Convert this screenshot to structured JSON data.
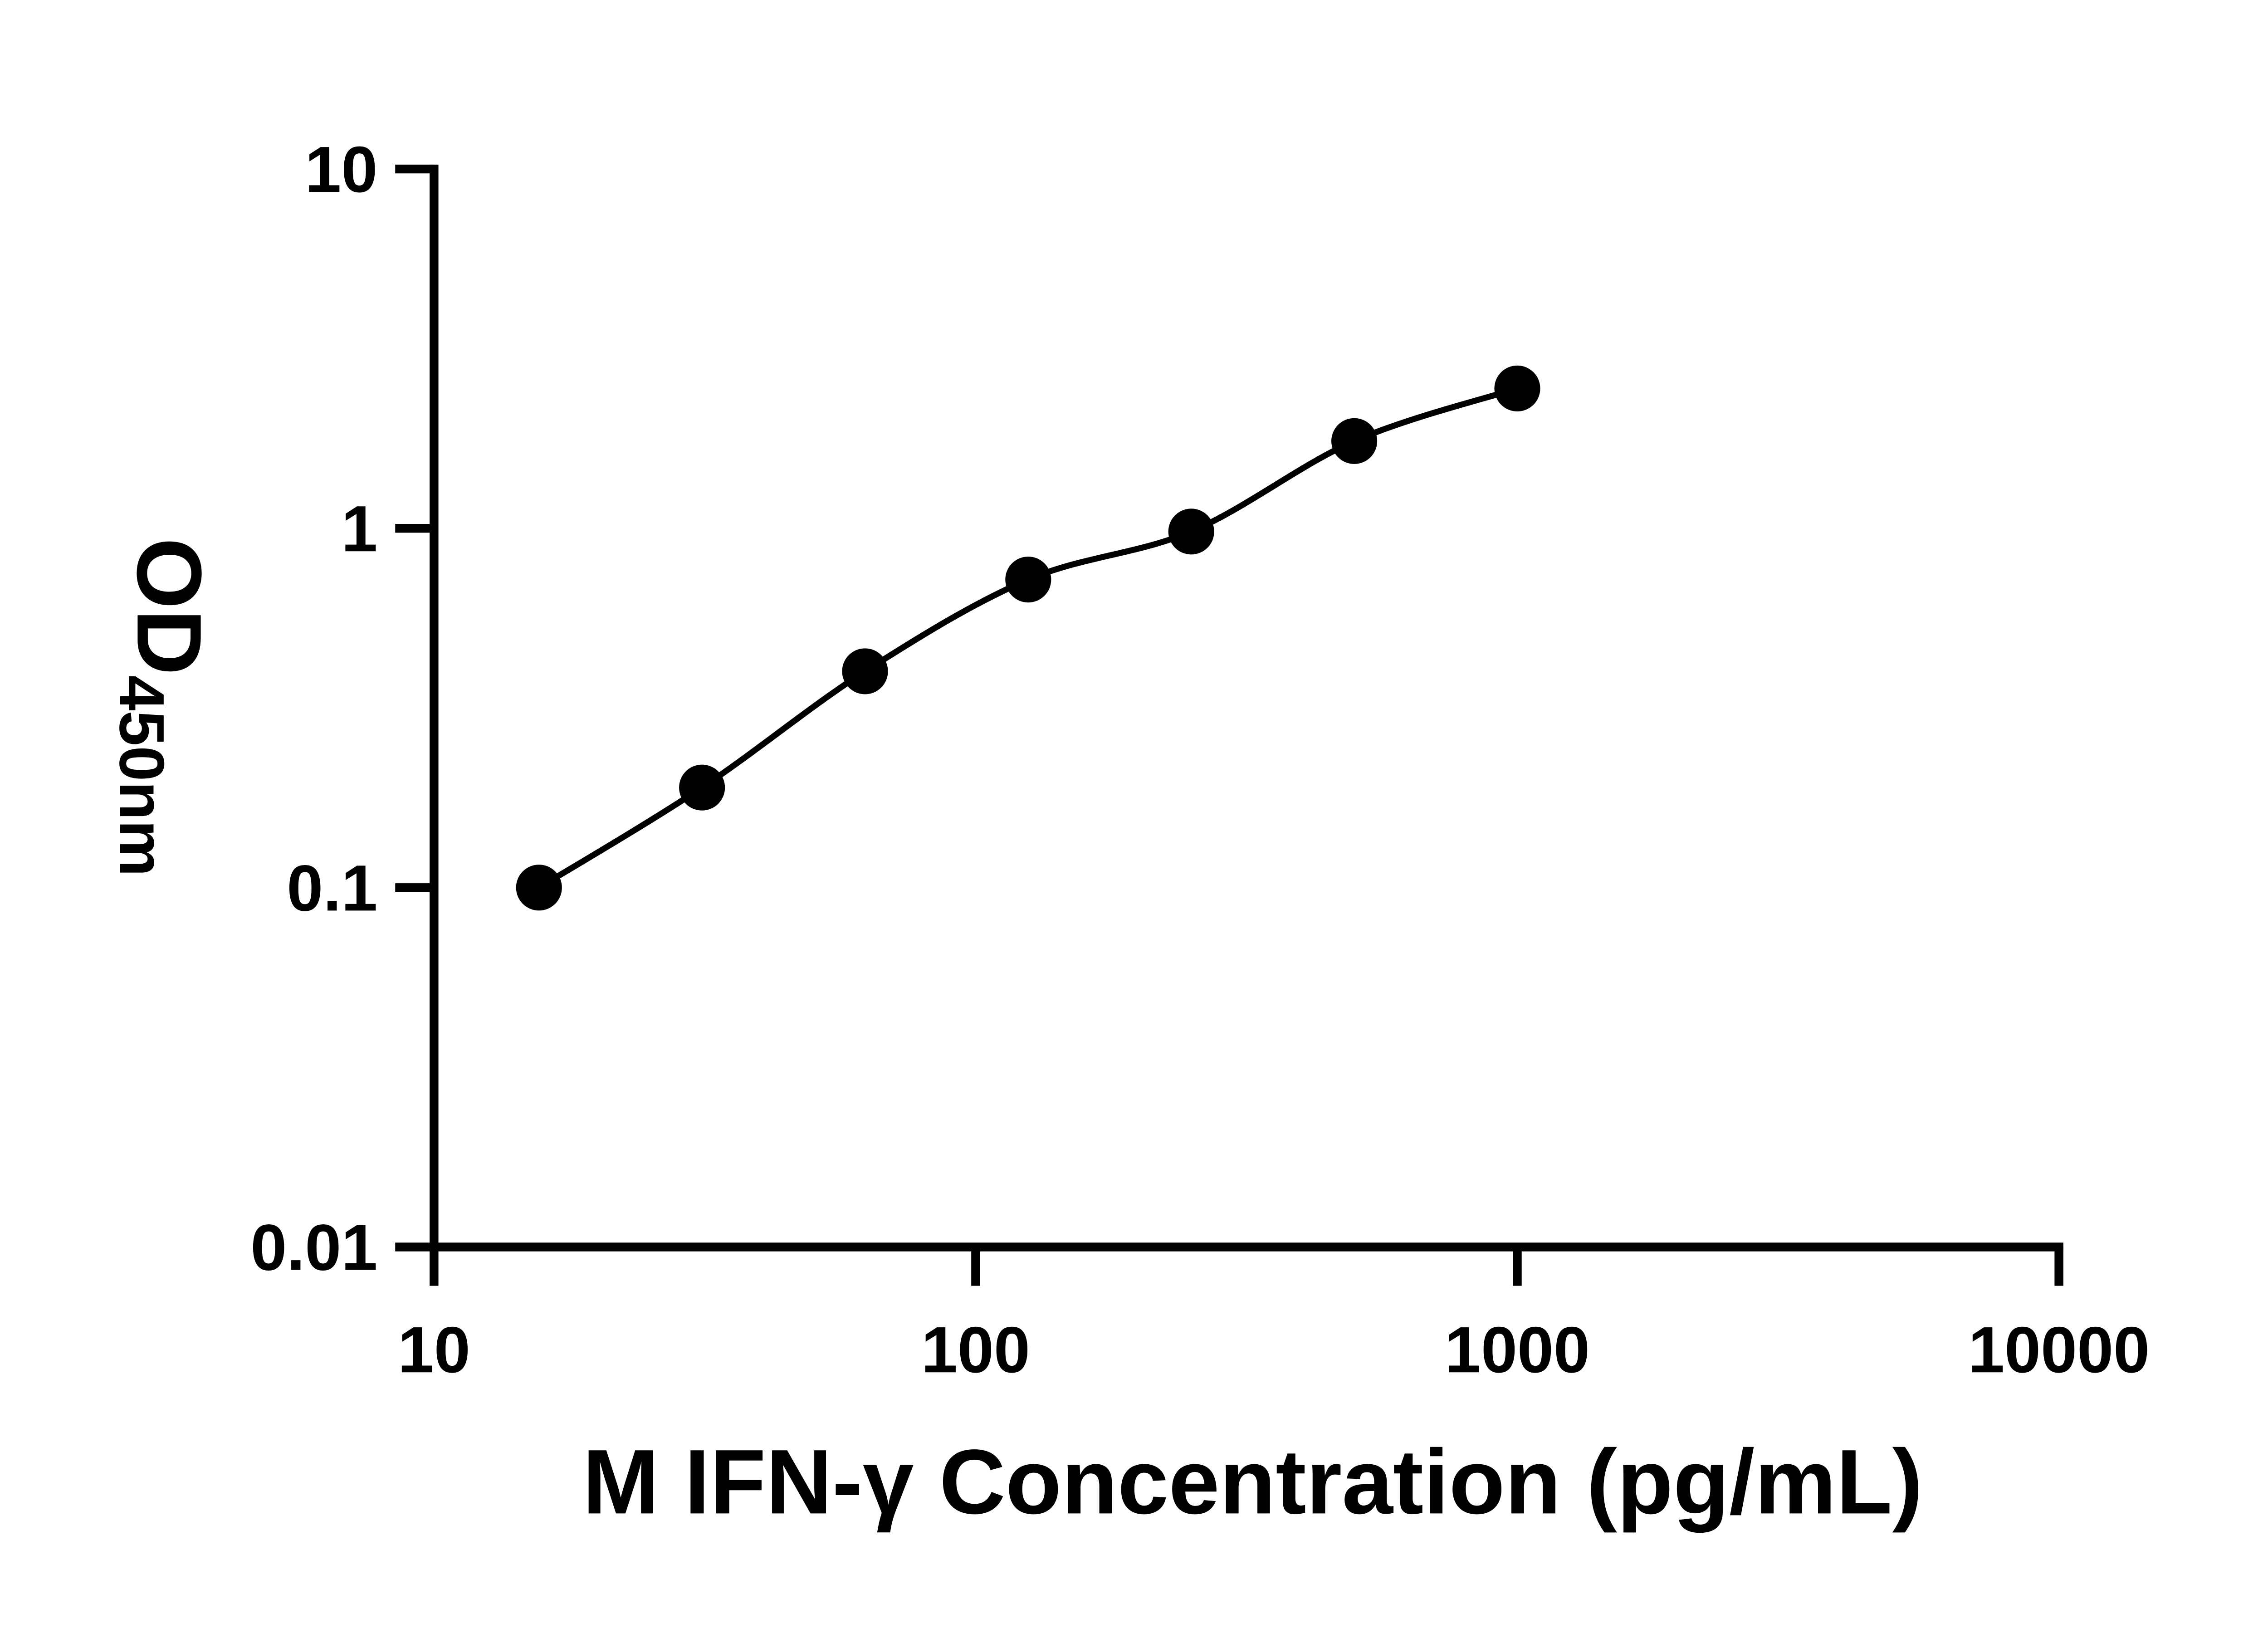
{
  "page": {
    "background": "#ffffff"
  },
  "colors": {
    "axis": "#000000",
    "text": "#000000",
    "marker": "#000000",
    "line": "#000000",
    "background": "#ffffff"
  },
  "chart_data": {
    "type": "scatter",
    "subtype": "elisa-standard-curve",
    "title": "",
    "xlabel": "M IFN-γ Concentration (pg/mL)",
    "ylabel": "OD450nm",
    "ylabel_main": "OD",
    "ylabel_sub": "450nm",
    "x_scale": "log10",
    "y_scale": "log10",
    "xlim": [
      10,
      10000
    ],
    "ylim": [
      0.01,
      10
    ],
    "grid": false,
    "legend": false,
    "x_ticks": [
      {
        "value": 10,
        "label": "10"
      },
      {
        "value": 100,
        "label": "100"
      },
      {
        "value": 1000,
        "label": "1000"
      },
      {
        "value": 10000,
        "label": "10000"
      }
    ],
    "y_ticks": [
      {
        "value": 0.01,
        "label": "0.01"
      },
      {
        "value": 0.1,
        "label": "0.1"
      },
      {
        "value": 1,
        "label": "1"
      },
      {
        "value": 10,
        "label": "10"
      }
    ],
    "series": [
      {
        "marker": "filled-circle",
        "marker_color": "#000000",
        "line_color": "#000000",
        "points": [
          {
            "x": 15.625,
            "y": 0.1
          },
          {
            "x": 31.25,
            "y": 0.19
          },
          {
            "x": 62.5,
            "y": 0.4
          },
          {
            "x": 125,
            "y": 0.72
          },
          {
            "x": 250,
            "y": 0.98
          },
          {
            "x": 500,
            "y": 1.75
          },
          {
            "x": 1000,
            "y": 2.45
          }
        ]
      }
    ]
  }
}
